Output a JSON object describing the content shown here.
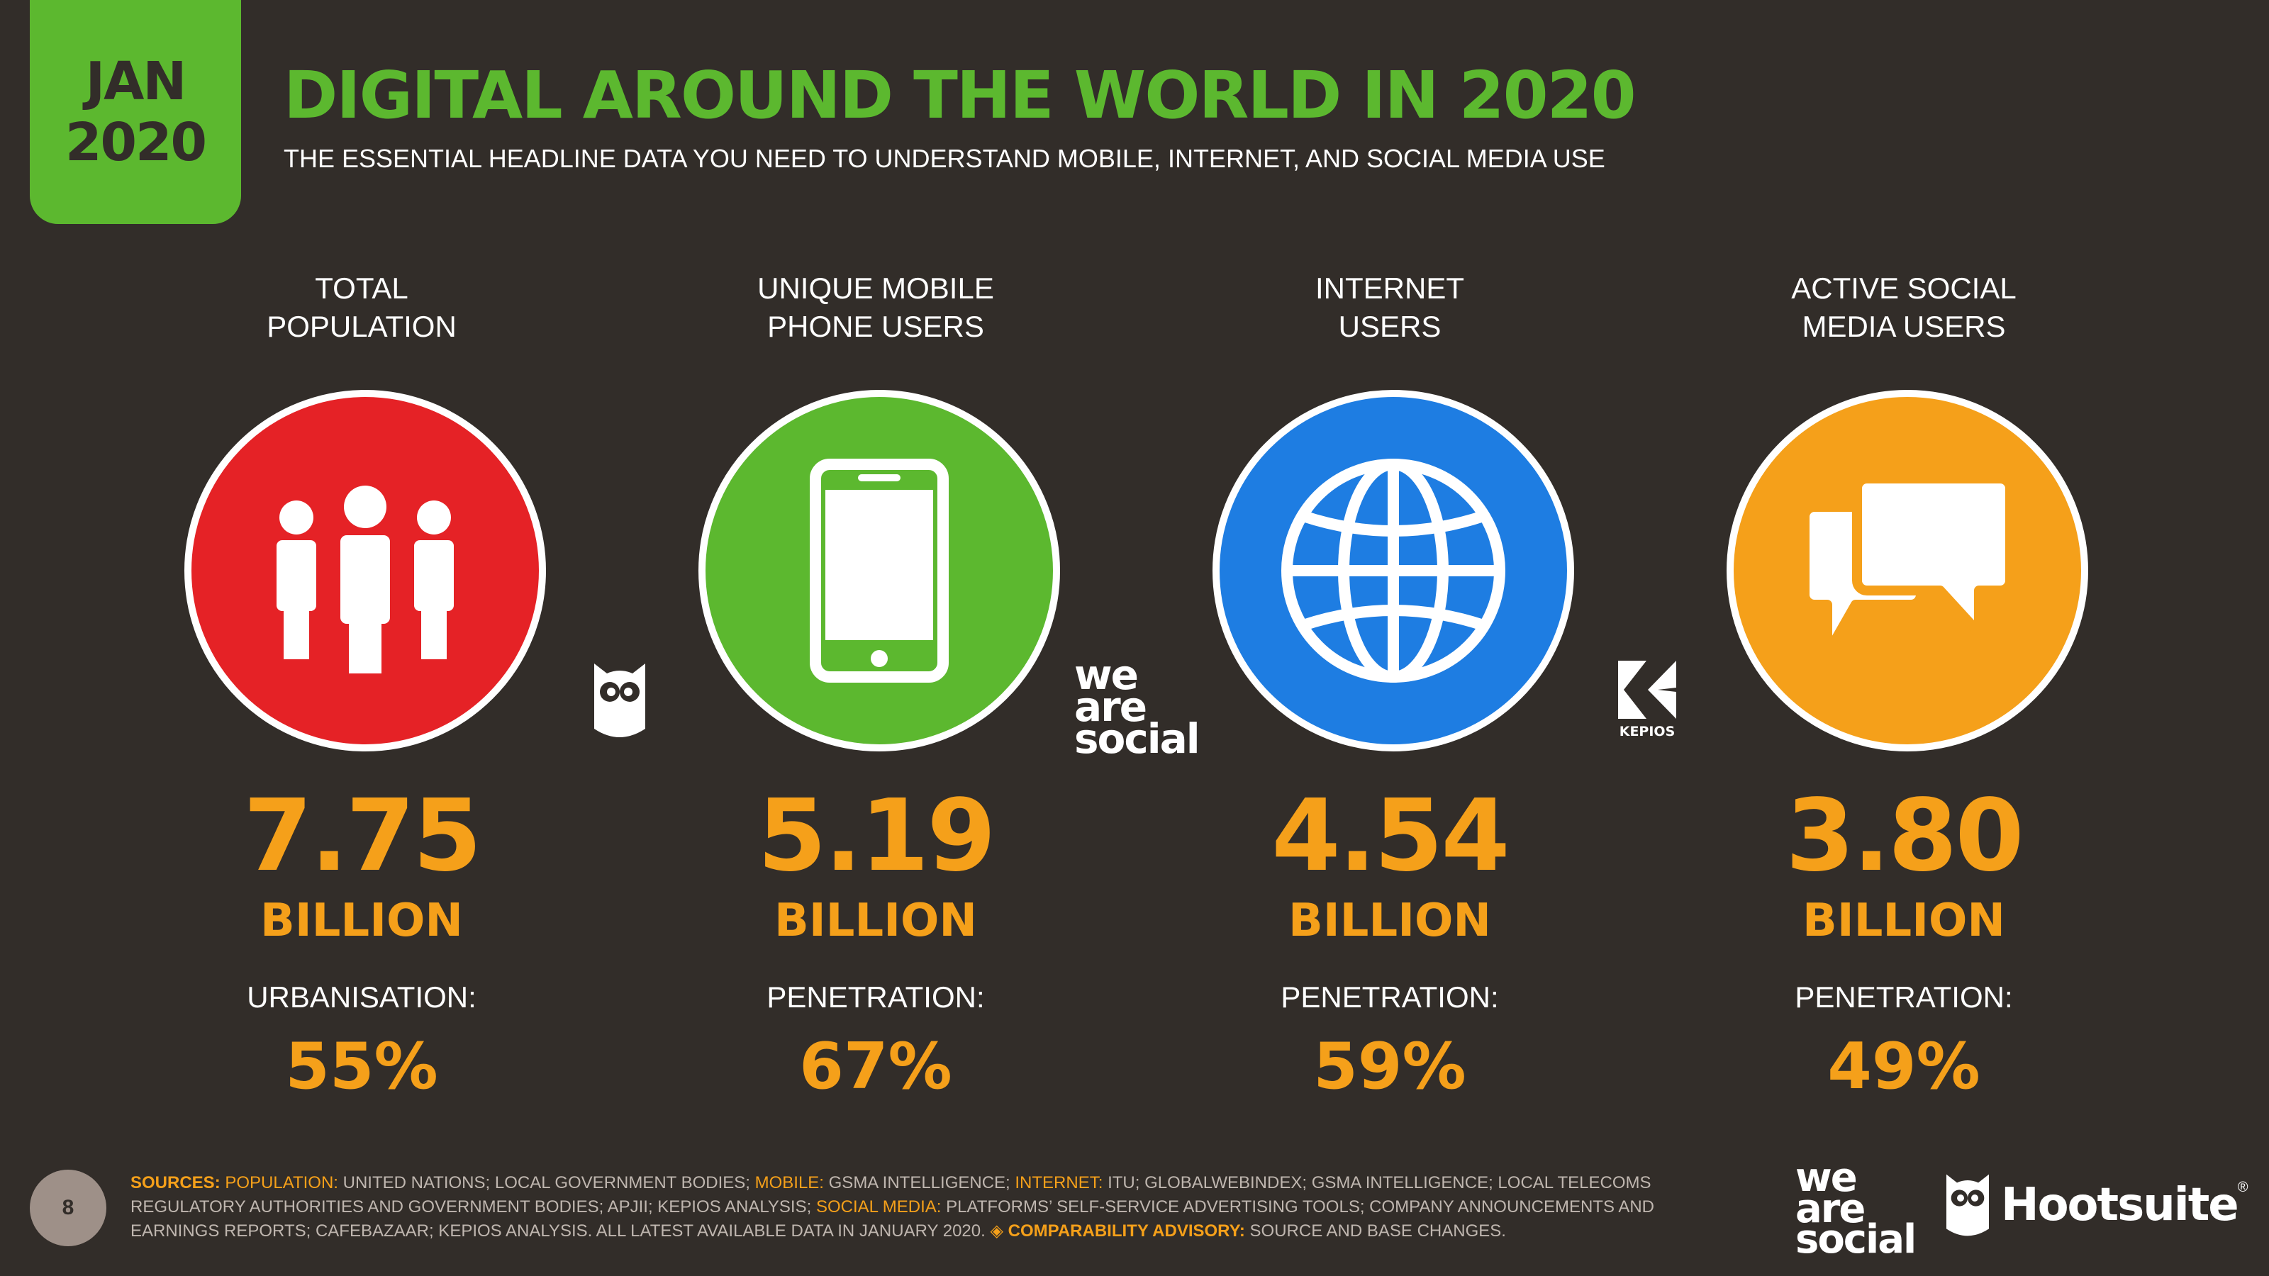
{
  "header": {
    "date_month": "JAN",
    "date_year": "2020",
    "title": "DIGITAL AROUND THE WORLD IN 2020",
    "subtitle": "THE ESSENTIAL HEADLINE DATA YOU NEED TO UNDERSTAND MOBILE, INTERNET, AND SOCIAL MEDIA USE"
  },
  "stats": [
    {
      "label": "TOTAL\nPOPULATION",
      "value": "7.75",
      "unit": "BILLION",
      "metric_label": "URBANISATION:",
      "metric_value": "55%",
      "icon": "people-icon",
      "color": "#e52226"
    },
    {
      "label": "UNIQUE MOBILE\nPHONE USERS",
      "value": "5.19",
      "unit": "BILLION",
      "metric_label": "PENETRATION:",
      "metric_value": "67%",
      "icon": "mobile-phone-icon",
      "color": "#5cb82f"
    },
    {
      "label": "INTERNET\nUSERS",
      "value": "4.54",
      "unit": "BILLION",
      "metric_label": "PENETRATION:",
      "metric_value": "59%",
      "icon": "globe-icon",
      "color": "#1e7de2"
    },
    {
      "label": "ACTIVE SOCIAL\nMEDIA USERS",
      "value": "3.80",
      "unit": "BILLION",
      "metric_label": "PENETRATION:",
      "metric_value": "49%",
      "icon": "chat-bubbles-icon",
      "color": "#f5a01a"
    }
  ],
  "logos": {
    "we_are_social": [
      "we",
      "are",
      "social"
    ],
    "kepios": "KEPIOS",
    "hootsuite": "Hootsuite",
    "hootsuite_mark": "®"
  },
  "footer": {
    "page_number": "8",
    "sources_label": "SOURCES:",
    "population_label": "POPULATION:",
    "population_text": "UNITED NATIONS; LOCAL GOVERNMENT BODIES;",
    "mobile_label": "MOBILE:",
    "mobile_text": "GSMA INTELLIGENCE;",
    "internet_label": "INTERNET:",
    "internet_text": "ITU; GLOBALWEBINDEX; GSMA INTELLIGENCE; LOCAL TELECOMS REGULATORY AUTHORITIES AND GOVERNMENT BODIES; APJII; KEPIOS ANALYSIS;",
    "social_label": "SOCIAL MEDIA:",
    "social_text": "PLATFORMS’ SELF-SERVICE ADVERTISING TOOLS; COMPANY ANNOUNCEMENTS AND EARNINGS REPORTS; CAFEBAZAAR; KEPIOS ANALYSIS. ALL LATEST AVAILABLE DATA IN JANUARY 2020.",
    "advisory_icon": "◈",
    "advisory_label": "COMPARABILITY ADVISORY:",
    "advisory_text": "SOURCE AND BASE CHANGES."
  }
}
